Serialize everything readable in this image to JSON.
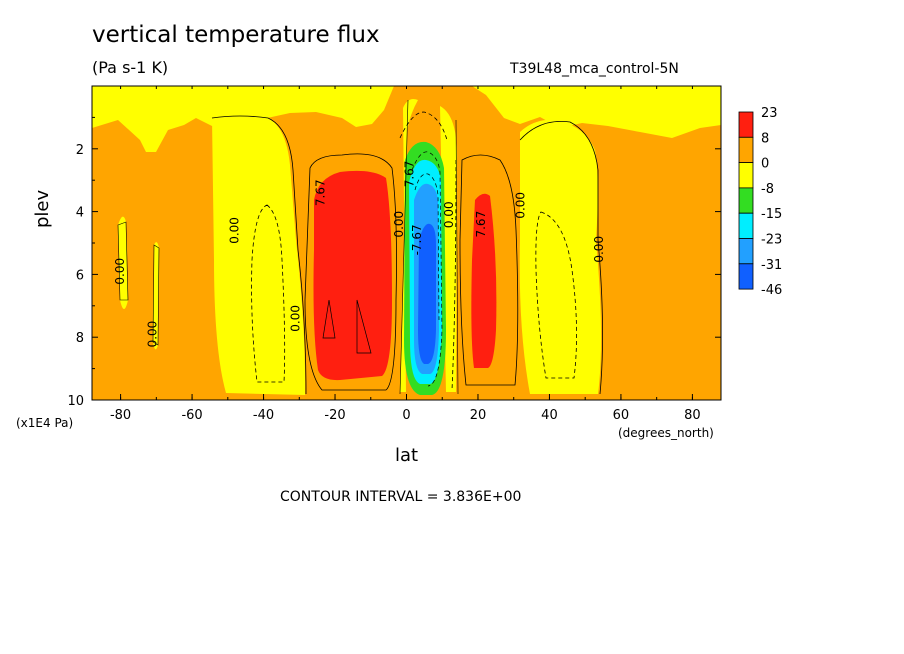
{
  "page": {
    "title": "vertical temperature flux",
    "units": "(Pa s-1 K)",
    "dataset": "T39L48_mca_control-5N",
    "y_unit": "(x1E4 Pa)",
    "x_unit": "(degrees_north)",
    "xlabel": "lat",
    "ylabel": "plev",
    "contour_interval": "CONTOUR INTERVAL = 3.836E+00"
  },
  "colors": {
    "red": "#ff1f10",
    "orange": "#ffa500",
    "yellow": "#ffff00",
    "green": "#33dd22",
    "cyan": "#00eeff",
    "lightblue": "#22a0ff",
    "blue": "#1060ff"
  },
  "chart_data": {
    "type": "heatmap",
    "subtype": "filled contour",
    "x": {
      "name": "lat",
      "range": [
        -88,
        88
      ],
      "ticks": [
        -80,
        -60,
        -40,
        -20,
        0,
        20,
        40,
        60,
        80
      ]
    },
    "y": {
      "name": "plev",
      "range": [
        0,
        10
      ],
      "inverted": true,
      "ticks": [
        2,
        4,
        6,
        8,
        10
      ]
    },
    "colorbar": {
      "levels": [
        "23",
        "8",
        "0",
        "-8",
        "-15",
        "-23",
        "-31",
        "-46"
      ],
      "colors": [
        "red",
        "orange",
        "yellow",
        "green",
        "cyan",
        "lightblue",
        "blue"
      ]
    },
    "contour_labels": [
      {
        "text": "0.00",
        "lat": -79,
        "plev": 5.9
      },
      {
        "text": "0.00",
        "lat": -70,
        "plev": 7.9
      },
      {
        "text": "0.00",
        "lat": -47,
        "plev": 4.6
      },
      {
        "text": "0.00",
        "lat": -30,
        "plev": 7.4
      },
      {
        "text": "7.67",
        "lat": -23,
        "plev": 3.4
      },
      {
        "text": "0.00",
        "lat": -1,
        "plev": 4.4
      },
      {
        "text": "7.67",
        "lat": 2,
        "plev": 2.8
      },
      {
        "text": "-7.67",
        "lat": 4,
        "plev": 4.9
      },
      {
        "text": "0.00",
        "lat": 13,
        "plev": 4.1
      },
      {
        "text": "7.67",
        "lat": 22,
        "plev": 4.4
      },
      {
        "text": "0.00",
        "lat": 33,
        "plev": 3.8
      },
      {
        "text": "0.00",
        "lat": 55,
        "plev": 5.2
      }
    ]
  }
}
